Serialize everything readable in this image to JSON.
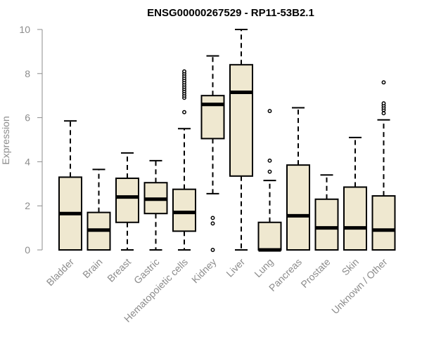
{
  "chart_data": {
    "type": "box",
    "title": "ENSG00000267529 - RP11-53B2.1",
    "xlabel": "",
    "ylabel": "Expression",
    "ylim": [
      0,
      10
    ],
    "yticks": [
      0,
      2,
      4,
      6,
      8,
      10
    ],
    "grid": false,
    "colors": {
      "box_fill": "#efe8d0",
      "box_stroke": "#000000",
      "median": "#000000",
      "axis_text": "#8c8c8c"
    },
    "categories": [
      "Bladder",
      "Brain",
      "Breast",
      "Gastric",
      "Hematopoietic cells",
      "Kidney",
      "Liver",
      "Lung",
      "Pancreas",
      "Prostate",
      "Skin",
      "Unknown / Other"
    ],
    "boxes": [
      {
        "category": "Bladder",
        "min": 0,
        "q1": 0,
        "median": 1.65,
        "q3": 3.3,
        "max": 5.85,
        "outliers": []
      },
      {
        "category": "Brain",
        "min": 0,
        "q1": 0,
        "median": 0.9,
        "q3": 1.7,
        "max": 3.65,
        "outliers": []
      },
      {
        "category": "Breast",
        "min": 0,
        "q1": 1.25,
        "median": 2.4,
        "q3": 3.25,
        "max": 4.4,
        "outliers": []
      },
      {
        "category": "Gastric",
        "min": 0,
        "q1": 1.65,
        "median": 2.3,
        "q3": 3.05,
        "max": 4.05,
        "outliers": []
      },
      {
        "category": "Hematopoietic cells",
        "min": 0,
        "q1": 0.85,
        "median": 1.7,
        "q3": 2.75,
        "max": 5.5,
        "outliers": [
          6.25,
          6.9,
          7.0,
          7.1,
          7.2,
          7.3,
          7.4,
          7.5,
          7.6,
          7.7,
          7.8,
          7.9,
          8.0,
          8.1
        ]
      },
      {
        "category": "Kidney",
        "min": 2.55,
        "q1": 5.05,
        "median": 6.6,
        "q3": 7.0,
        "max": 8.8,
        "outliers": [
          0,
          1.2,
          1.45
        ]
      },
      {
        "category": "Liver",
        "min": 0,
        "q1": 3.35,
        "median": 7.15,
        "q3": 8.4,
        "max": 10.0,
        "outliers": []
      },
      {
        "category": "Lung",
        "min": 0,
        "q1": 0,
        "median": 0,
        "q3": 1.25,
        "max": 3.15,
        "outliers": [
          3.55,
          4.05,
          6.3
        ]
      },
      {
        "category": "Pancreas",
        "min": 0,
        "q1": 0,
        "median": 1.55,
        "q3": 3.85,
        "max": 6.45,
        "outliers": []
      },
      {
        "category": "Prostate",
        "min": 0,
        "q1": 0,
        "median": 1.0,
        "q3": 2.3,
        "max": 3.4,
        "outliers": []
      },
      {
        "category": "Skin",
        "min": 0,
        "q1": 0,
        "median": 1.0,
        "q3": 2.85,
        "max": 5.1,
        "outliers": []
      },
      {
        "category": "Unknown / Other",
        "min": 0,
        "q1": 0,
        "median": 0.9,
        "q3": 2.45,
        "max": 5.9,
        "outliers": [
          6.2,
          6.35,
          6.45,
          6.55,
          6.65,
          7.6
        ]
      }
    ]
  }
}
